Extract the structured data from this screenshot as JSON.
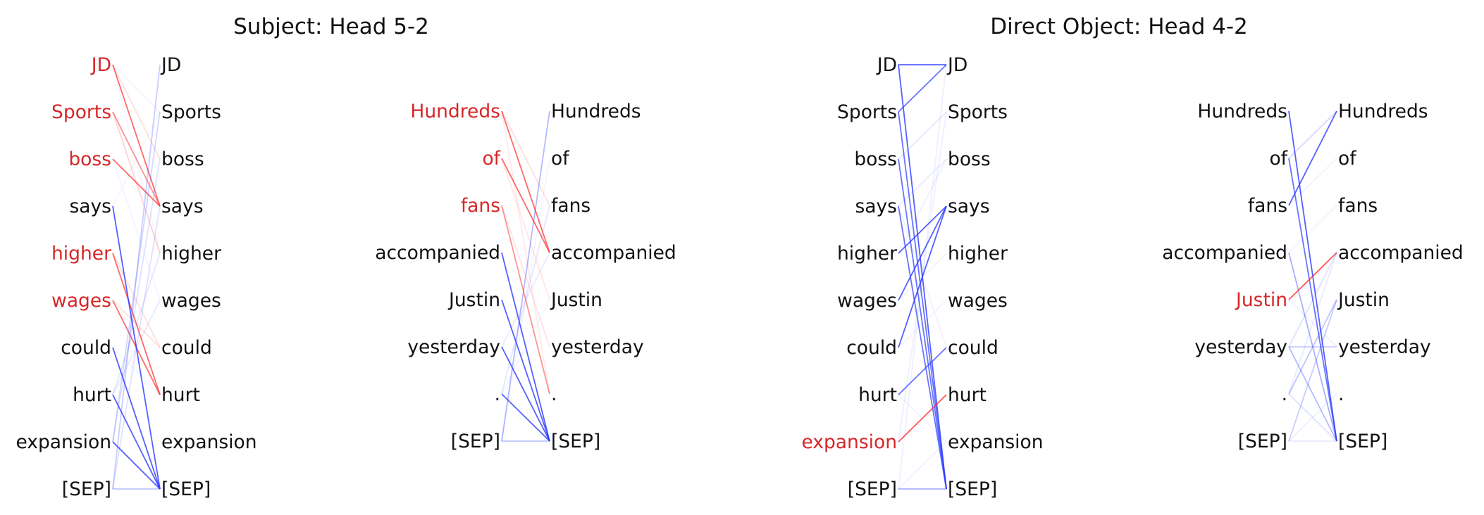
{
  "colors": {
    "highlight": "#d62728",
    "normal": "#111111",
    "line_pos": "#2a3aff",
    "line_neg": "#ff2a2a"
  },
  "panels": [
    {
      "title": "Subject: Head 5-2"
    },
    {
      "title": "Direct Object: Head 4-2"
    }
  ],
  "diagrams": [
    {
      "tokens": [
        "JD",
        "Sports",
        "boss",
        "says",
        "higher",
        "wages",
        "could",
        "hurt",
        "expansion",
        "[SEP]"
      ],
      "left_highlight": [
        0,
        1,
        2,
        4,
        5
      ],
      "right_highlight": [],
      "edges": [
        [
          0,
          3,
          -0.7
        ],
        [
          1,
          3,
          -0.5
        ],
        [
          2,
          3,
          -0.7
        ],
        [
          1,
          4,
          -0.2
        ],
        [
          0,
          2,
          -0.15
        ],
        [
          4,
          7,
          -0.7
        ],
        [
          5,
          7,
          -0.7
        ],
        [
          4,
          6,
          -0.15
        ],
        [
          5,
          6,
          -0.15
        ],
        [
          3,
          9,
          0.8
        ],
        [
          6,
          9,
          0.8
        ],
        [
          7,
          9,
          0.8
        ],
        [
          8,
          9,
          0.8
        ],
        [
          9,
          9,
          0.3
        ],
        [
          9,
          0,
          0.25
        ],
        [
          8,
          1,
          0.2
        ],
        [
          8,
          2,
          0.15
        ],
        [
          9,
          3,
          0.15
        ],
        [
          7,
          4,
          0.12
        ],
        [
          7,
          5,
          0.1
        ],
        [
          0,
          1,
          0.05
        ],
        [
          0,
          4,
          0.05
        ],
        [
          3,
          1,
          0.05
        ],
        [
          2,
          5,
          0.05
        ],
        [
          6,
          7,
          0.05
        ]
      ]
    },
    {
      "tokens": [
        "Hundreds",
        "of",
        "fans",
        "accompanied",
        "Justin",
        "yesterday",
        ".",
        "[SEP]"
      ],
      "left_highlight": [
        0,
        1,
        2
      ],
      "right_highlight": [],
      "edges": [
        [
          0,
          3,
          -0.7
        ],
        [
          1,
          3,
          -0.7
        ],
        [
          2,
          6,
          -0.5
        ],
        [
          0,
          2,
          -0.15
        ],
        [
          1,
          4,
          -0.12
        ],
        [
          2,
          5,
          -0.12
        ],
        [
          0,
          6,
          -0.1
        ],
        [
          3,
          7,
          0.8
        ],
        [
          4,
          7,
          0.8
        ],
        [
          5,
          7,
          0.8
        ],
        [
          6,
          7,
          0.8
        ],
        [
          7,
          7,
          0.3
        ],
        [
          7,
          0,
          0.35
        ],
        [
          6,
          2,
          0.12
        ],
        [
          5,
          3,
          0.1
        ],
        [
          7,
          1,
          0.05
        ],
        [
          6,
          4,
          0.05
        ]
      ]
    },
    {
      "tokens": [
        "JD",
        "Sports",
        "boss",
        "says",
        "higher",
        "wages",
        "could",
        "hurt",
        "expansion",
        "[SEP]"
      ],
      "left_highlight": [
        8
      ],
      "right_highlight": [],
      "edges": [
        [
          0,
          0,
          0.8
        ],
        [
          0,
          9,
          0.8
        ],
        [
          1,
          9,
          0.7
        ],
        [
          2,
          9,
          0.7
        ],
        [
          3,
          9,
          0.7
        ],
        [
          1,
          0,
          0.7
        ],
        [
          4,
          3,
          0.8
        ],
        [
          5,
          3,
          0.8
        ],
        [
          6,
          3,
          0.8
        ],
        [
          7,
          6,
          0.7
        ],
        [
          8,
          7,
          -0.8
        ],
        [
          9,
          9,
          0.4
        ],
        [
          2,
          1,
          0.12
        ],
        [
          3,
          2,
          0.1
        ],
        [
          9,
          0,
          0.08
        ],
        [
          8,
          1,
          0.08
        ],
        [
          4,
          2,
          0.08
        ],
        [
          5,
          4,
          0.06
        ],
        [
          6,
          5,
          0.06
        ],
        [
          9,
          8,
          0.08
        ],
        [
          7,
          8,
          0.06
        ],
        [
          3,
          6,
          0.06
        ]
      ]
    },
    {
      "tokens": [
        "Hundreds",
        "of",
        "fans",
        "accompanied",
        "Justin",
        "yesterday",
        ".",
        "[SEP]"
      ],
      "left_highlight": [
        4
      ],
      "right_highlight": [],
      "edges": [
        [
          0,
          7,
          0.8
        ],
        [
          1,
          7,
          0.7
        ],
        [
          2,
          0,
          0.8
        ],
        [
          3,
          7,
          0.4
        ],
        [
          5,
          7,
          0.35
        ],
        [
          4,
          3,
          -0.8
        ],
        [
          6,
          4,
          0.3
        ],
        [
          7,
          4,
          0.25
        ],
        [
          5,
          5,
          0.25
        ],
        [
          6,
          7,
          0.15
        ],
        [
          7,
          7,
          0.1
        ],
        [
          1,
          0,
          0.2
        ],
        [
          5,
          3,
          0.15
        ],
        [
          6,
          3,
          0.1
        ],
        [
          7,
          6,
          0.08
        ],
        [
          4,
          5,
          0.08
        ],
        [
          3,
          2,
          0.06
        ],
        [
          2,
          1,
          0.06
        ]
      ]
    }
  ]
}
